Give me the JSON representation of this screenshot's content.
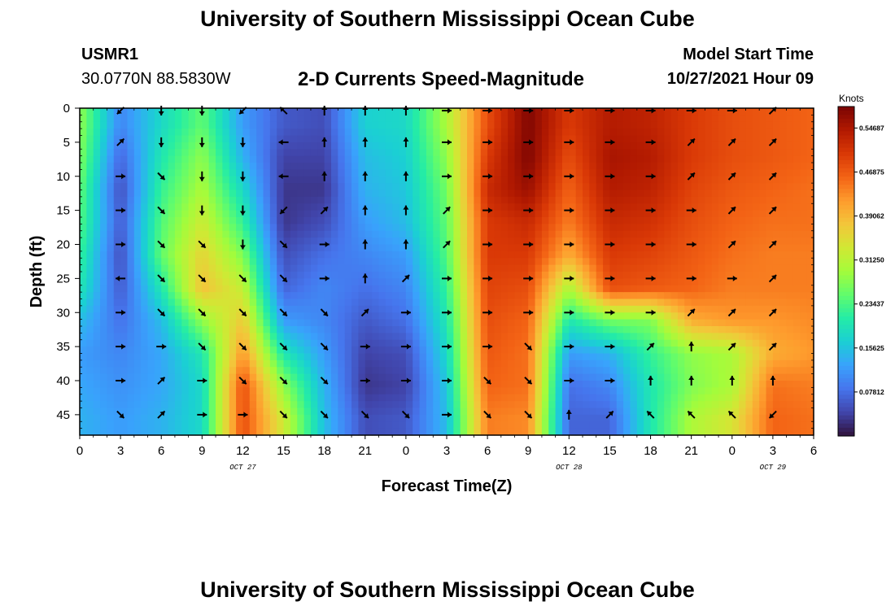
{
  "header": {
    "title": "University of Southern Mississippi Ocean Cube",
    "station_id": "USMR1",
    "station_coords": "30.0770N  88.5830W",
    "subtitle": "2-D Currents Speed-Magnitude",
    "model_start_label": "Model Start Time",
    "model_start_value": "10/27/2021 Hour 09"
  },
  "footer": {
    "next_title": "University of Southern Mississippi Ocean Cube"
  },
  "chart_data": {
    "type": "heatmap",
    "title": "2-D Currents Speed-Magnitude",
    "xlabel": "Forecast Time(Z)",
    "ylabel": "Depth (ft)",
    "units_label": "Knots",
    "x_hours_range": [
      0,
      54
    ],
    "y_range": [
      0,
      48
    ],
    "x_tick_labels": [
      "0",
      "3",
      "6",
      "9",
      "12",
      "15",
      "18",
      "21",
      "0",
      "3",
      "6",
      "9",
      "12",
      "15",
      "18",
      "21",
      "0",
      "3",
      "6"
    ],
    "date_labels": [
      {
        "label": "OCT 27",
        "hour": 12
      },
      {
        "label": "OCT 28",
        "hour": 36
      },
      {
        "label": "OCT 29",
        "hour": 51
      }
    ],
    "y_ticks": [
      0,
      5,
      10,
      15,
      20,
      25,
      30,
      35,
      40,
      45
    ],
    "colorbar": {
      "min": 0.0,
      "max": 0.585,
      "tick_values": [
        0.07812,
        0.15625,
        0.23437,
        0.3125,
        0.39062,
        0.46875,
        0.54687
      ],
      "tick_labels": [
        "0.07812",
        "0.15625",
        "0.23437",
        "0.31250",
        "0.39062",
        "0.46875",
        "0.54687"
      ],
      "colors": [
        "#30123b",
        "#4145ab",
        "#4675ed",
        "#39a2fc",
        "#1bcfd4",
        "#24eca6",
        "#61fc6c",
        "#a4fc3b",
        "#d1e834",
        "#f3c63a",
        "#fe9b2d",
        "#f36315",
        "#d93806",
        "#b11901",
        "#7a0403"
      ]
    },
    "speed_profile": [
      {
        "hour": 0,
        "values": [
          0.28,
          0.27,
          0.25,
          0.24,
          0.22,
          0.2,
          0.15,
          0.12,
          0.13,
          0.14
        ]
      },
      {
        "hour": 3,
        "values": [
          0.1,
          0.07,
          0.05,
          0.06,
          0.05,
          0.06,
          0.08,
          0.1,
          0.11,
          0.12
        ]
      },
      {
        "hour": 6,
        "values": [
          0.18,
          0.2,
          0.22,
          0.24,
          0.25,
          0.2,
          0.15,
          0.13,
          0.13,
          0.14
        ]
      },
      {
        "hour": 9,
        "values": [
          0.25,
          0.28,
          0.3,
          0.33,
          0.36,
          0.38,
          0.28,
          0.2,
          0.18,
          0.18
        ]
      },
      {
        "hour": 12,
        "values": [
          0.12,
          0.14,
          0.18,
          0.22,
          0.27,
          0.32,
          0.37,
          0.42,
          0.48,
          0.48
        ]
      },
      {
        "hour": 15,
        "values": [
          0.06,
          0.04,
          0.03,
          0.03,
          0.05,
          0.07,
          0.12,
          0.2,
          0.28,
          0.33
        ]
      },
      {
        "hour": 18,
        "values": [
          0.05,
          0.04,
          0.03,
          0.05,
          0.08,
          0.1,
          0.1,
          0.12,
          0.14,
          0.15
        ]
      },
      {
        "hour": 21,
        "values": [
          0.17,
          0.15,
          0.14,
          0.12,
          0.1,
          0.08,
          0.06,
          0.04,
          0.03,
          0.05
        ]
      },
      {
        "hour": 24,
        "values": [
          0.18,
          0.17,
          0.16,
          0.15,
          0.12,
          0.1,
          0.08,
          0.05,
          0.04,
          0.06
        ]
      },
      {
        "hour": 27,
        "values": [
          0.3,
          0.28,
          0.26,
          0.25,
          0.24,
          0.22,
          0.2,
          0.18,
          0.16,
          0.15
        ]
      },
      {
        "hour": 30,
        "values": [
          0.48,
          0.5,
          0.52,
          0.5,
          0.5,
          0.49,
          0.48,
          0.47,
          0.46,
          0.44
        ]
      },
      {
        "hour": 33,
        "values": [
          0.58,
          0.58,
          0.56,
          0.52,
          0.5,
          0.48,
          0.46,
          0.45,
          0.45,
          0.43
        ]
      },
      {
        "hour": 36,
        "values": [
          0.5,
          0.48,
          0.46,
          0.44,
          0.4,
          0.3,
          0.2,
          0.12,
          0.08,
          0.07
        ]
      },
      {
        "hour": 39,
        "values": [
          0.54,
          0.55,
          0.54,
          0.52,
          0.5,
          0.48,
          0.26,
          0.14,
          0.1,
          0.07
        ]
      },
      {
        "hour": 42,
        "values": [
          0.53,
          0.54,
          0.53,
          0.51,
          0.49,
          0.47,
          0.27,
          0.22,
          0.2,
          0.2
        ]
      },
      {
        "hour": 45,
        "values": [
          0.5,
          0.5,
          0.49,
          0.48,
          0.47,
          0.46,
          0.4,
          0.28,
          0.27,
          0.3
        ]
      },
      {
        "hour": 48,
        "values": [
          0.48,
          0.48,
          0.47,
          0.46,
          0.45,
          0.44,
          0.42,
          0.3,
          0.3,
          0.34
        ]
      },
      {
        "hour": 51,
        "values": [
          0.47,
          0.47,
          0.46,
          0.45,
          0.44,
          0.44,
          0.42,
          0.4,
          0.45,
          0.46
        ]
      },
      {
        "hour": 54,
        "values": [
          0.46,
          0.46,
          0.45,
          0.45,
          0.44,
          0.44,
          0.43,
          0.42,
          0.44,
          0.45
        ]
      }
    ],
    "arrow_profile": [
      {
        "hour": 3,
        "dirs": [
          "SW",
          "NE",
          "E",
          "E",
          "E",
          "W",
          "E",
          "E",
          "E",
          "SE"
        ]
      },
      {
        "hour": 6,
        "dirs": [
          "S",
          "S",
          "SE",
          "SE",
          "SE",
          "SE",
          "SE",
          "E",
          "NE",
          "NE"
        ]
      },
      {
        "hour": 9,
        "dirs": [
          "S",
          "S",
          "S",
          "S",
          "SE",
          "SE",
          "SE",
          "SE",
          "E",
          "E"
        ]
      },
      {
        "hour": 12,
        "dirs": [
          "SW",
          "S",
          "S",
          "S",
          "S",
          "SE",
          "SE",
          "SE",
          "SE",
          "E"
        ]
      },
      {
        "hour": 15,
        "dirs": [
          "NW",
          "W",
          "W",
          "SW",
          "SE",
          "SE",
          "SE",
          "SE",
          "SE",
          "SE"
        ]
      },
      {
        "hour": 18,
        "dirs": [
          "N",
          "N",
          "N",
          "NE",
          "E",
          "E",
          "SE",
          "SE",
          "SE",
          "SE"
        ]
      },
      {
        "hour": 21,
        "dirs": [
          "N",
          "N",
          "N",
          "N",
          "N",
          "N",
          "NE",
          "E",
          "E",
          "SE"
        ]
      },
      {
        "hour": 24,
        "dirs": [
          "N",
          "N",
          "N",
          "N",
          "N",
          "NE",
          "E",
          "E",
          "E",
          "SE"
        ]
      },
      {
        "hour": 27,
        "dirs": [
          "E",
          "E",
          "E",
          "NE",
          "NE",
          "E",
          "E",
          "E",
          "E",
          "E"
        ]
      },
      {
        "hour": 30,
        "dirs": [
          "E",
          "E",
          "E",
          "E",
          "E",
          "E",
          "E",
          "E",
          "SE",
          "SE"
        ]
      },
      {
        "hour": 33,
        "dirs": [
          "E",
          "E",
          "E",
          "E",
          "E",
          "E",
          "E",
          "SE",
          "SE",
          "SE"
        ]
      },
      {
        "hour": 36,
        "dirs": [
          "E",
          "E",
          "E",
          "E",
          "E",
          "E",
          "E",
          "E",
          "E",
          "N"
        ]
      },
      {
        "hour": 39,
        "dirs": [
          "E",
          "E",
          "E",
          "E",
          "E",
          "E",
          "E",
          "E",
          "E",
          "NE"
        ]
      },
      {
        "hour": 42,
        "dirs": [
          "E",
          "E",
          "E",
          "E",
          "E",
          "E",
          "E",
          "NE",
          "N",
          "NW"
        ]
      },
      {
        "hour": 45,
        "dirs": [
          "E",
          "NE",
          "NE",
          "E",
          "E",
          "E",
          "NE",
          "N",
          "N",
          "NW"
        ]
      },
      {
        "hour": 48,
        "dirs": [
          "E",
          "NE",
          "NE",
          "NE",
          "NE",
          "E",
          "NE",
          "NE",
          "N",
          "NW"
        ]
      },
      {
        "hour": 51,
        "dirs": [
          "NE",
          "NE",
          "NE",
          "NE",
          "NE",
          "NE",
          "NE",
          "NE",
          "N",
          "SW"
        ]
      }
    ]
  }
}
